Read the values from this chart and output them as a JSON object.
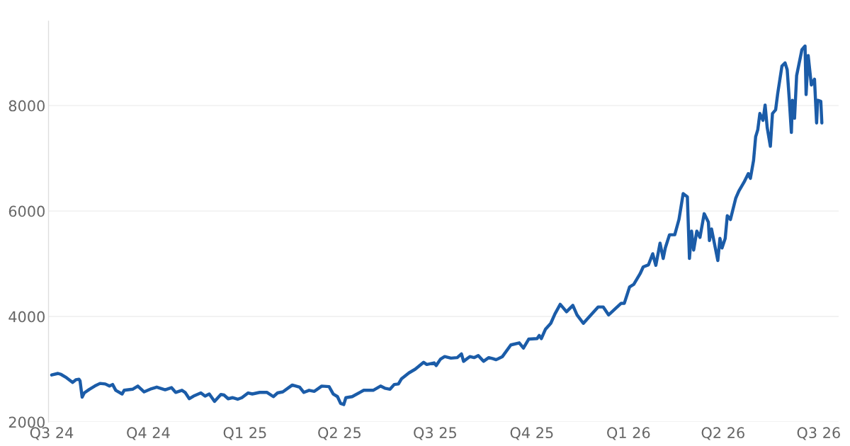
{
  "chart_data": {
    "type": "line",
    "x": [
      "2024-07-01",
      "2024-07-07",
      "2024-07-10",
      "2024-07-15",
      "2024-07-19",
      "2024-07-21",
      "2024-07-24",
      "2024-07-27",
      "2024-07-28",
      "2024-07-30",
      "2024-08-01",
      "2024-08-06",
      "2024-08-11",
      "2024-08-16",
      "2024-08-21",
      "2024-08-25",
      "2024-08-28",
      "2024-08-31",
      "2024-09-06",
      "2024-09-08",
      "2024-09-16",
      "2024-09-21",
      "2024-09-27",
      "2024-10-04",
      "2024-10-09",
      "2024-10-17",
      "2024-10-23",
      "2024-10-27",
      "2024-11-02",
      "2024-11-05",
      "2024-11-09",
      "2024-11-13",
      "2024-11-20",
      "2024-11-24",
      "2024-11-28",
      "2024-12-03",
      "2024-12-09",
      "2024-12-12",
      "2024-12-16",
      "2024-12-20",
      "2024-12-25",
      "2024-12-29",
      "2025-01-04",
      "2025-01-08",
      "2025-01-15",
      "2025-01-22",
      "2025-01-28",
      "2025-02-01",
      "2025-02-06",
      "2025-02-15",
      "2025-02-22",
      "2025-02-26",
      "2025-03-03",
      "2025-03-08",
      "2025-03-15",
      "2025-03-22",
      "2025-03-26",
      "2025-03-30",
      "2025-04-02",
      "2025-04-05",
      "2025-04-07",
      "2025-04-13",
      "2025-04-24",
      "2025-05-03",
      "2025-05-10",
      "2025-05-14",
      "2025-05-19",
      "2025-05-23",
      "2025-05-27",
      "2025-05-30",
      "2025-06-06",
      "2025-06-12",
      "2025-06-20",
      "2025-06-23",
      "2025-06-30",
      "2025-07-02",
      "2025-07-06",
      "2025-07-10",
      "2025-07-16",
      "2025-07-22",
      "2025-07-26",
      "2025-07-28",
      "2025-08-03",
      "2025-08-07",
      "2025-08-11",
      "2025-08-16",
      "2025-08-21",
      "2025-08-25",
      "2025-08-28",
      "2025-09-03",
      "2025-09-11",
      "2025-09-19",
      "2025-09-23",
      "2025-09-28",
      "2025-10-06",
      "2025-10-08",
      "2025-10-10",
      "2025-10-14",
      "2025-10-19",
      "2025-10-23",
      "2025-10-28",
      "2025-11-03",
      "2025-11-09",
      "2025-11-13",
      "2025-11-19",
      "2025-11-24",
      "2025-12-03",
      "2025-12-08",
      "2025-12-13",
      "2025-12-19",
      "2025-12-25",
      "2025-12-28",
      "2026-01-02",
      "2026-01-06",
      "2026-01-12",
      "2026-01-15",
      "2026-01-20",
      "2026-01-24",
      "2026-01-27",
      "2026-01-31",
      "2026-02-03",
      "2026-02-05",
      "2026-02-09",
      "2026-02-14",
      "2026-02-18",
      "2026-02-22",
      "2026-02-26",
      "2026-02-28",
      "2026-03-02",
      "2026-03-04",
      "2026-03-07",
      "2026-03-10",
      "2026-03-14",
      "2026-03-18",
      "2026-03-19",
      "2026-03-21",
      "2026-03-27",
      "2026-03-29",
      "2026-03-31",
      "2026-04-03",
      "2026-04-05",
      "2026-04-08",
      "2026-04-13",
      "2026-04-16",
      "2026-04-21",
      "2026-04-25",
      "2026-04-27",
      "2026-04-30",
      "2026-05-02",
      "2026-05-04",
      "2026-05-06",
      "2026-05-09",
      "2026-05-11",
      "2026-05-13",
      "2026-05-16",
      "2026-05-18",
      "2026-05-21",
      "2026-05-23",
      "2026-05-27",
      "2026-05-30",
      "2026-06-01",
      "2026-06-03",
      "2026-06-05",
      "2026-06-06",
      "2026-06-08",
      "2026-06-10",
      "2026-06-15",
      "2026-06-18",
      "2026-06-19",
      "2026-06-21",
      "2026-06-24",
      "2026-06-27",
      "2026-06-29",
      "2026-06-30",
      "2026-07-03",
      "2026-07-04"
    ],
    "series": [
      {
        "color": "#1b5ca8",
        "values": [
          2890,
          2920,
          2900,
          2840,
          2780,
          2750,
          2800,
          2810,
          2780,
          2470,
          2550,
          2620,
          2680,
          2730,
          2720,
          2680,
          2710,
          2600,
          2530,
          2600,
          2620,
          2680,
          2570,
          2630,
          2660,
          2610,
          2650,
          2560,
          2600,
          2560,
          2440,
          2490,
          2550,
          2490,
          2530,
          2390,
          2520,
          2510,
          2440,
          2460,
          2430,
          2460,
          2550,
          2530,
          2560,
          2560,
          2480,
          2550,
          2570,
          2700,
          2660,
          2560,
          2600,
          2580,
          2680,
          2670,
          2530,
          2480,
          2350,
          2330,
          2460,
          2480,
          2600,
          2600,
          2680,
          2640,
          2620,
          2710,
          2720,
          2820,
          2930,
          3000,
          3130,
          3090,
          3120,
          3070,
          3190,
          3240,
          3210,
          3220,
          3290,
          3150,
          3240,
          3220,
          3260,
          3150,
          3220,
          3200,
          3180,
          3240,
          3460,
          3500,
          3400,
          3570,
          3580,
          3640,
          3580,
          3760,
          3870,
          4050,
          4230,
          4090,
          4210,
          4030,
          3870,
          3980,
          4180,
          4180,
          4030,
          4140,
          4250,
          4250,
          4560,
          4610,
          4810,
          4940,
          4980,
          5190,
          4970,
          5390,
          5100,
          5300,
          5550,
          5550,
          5840,
          6330,
          6270,
          5100,
          5620,
          5260,
          5620,
          5500,
          5950,
          5790,
          5440,
          5660,
          5060,
          5480,
          5300,
          5480,
          5910,
          5840,
          6240,
          6380,
          6550,
          6710,
          6620,
          6960,
          7410,
          7540,
          7850,
          7720,
          8010,
          7580,
          7230,
          7850,
          7920,
          8230,
          8750,
          8810,
          8680,
          8120,
          7490,
          8100,
          7760,
          8570,
          9060,
          9130,
          8210,
          8950,
          8390,
          8500,
          7670,
          8100,
          8080,
          7670
        ]
      }
    ],
    "xlim": [
      "2024-06-28",
      "2026-07-20"
    ],
    "xticks": [
      {
        "value": "2024-07-01",
        "label": "Q3 24"
      },
      {
        "value": "2024-10-01",
        "label": "Q4 24"
      },
      {
        "value": "2025-01-01",
        "label": "Q1 25"
      },
      {
        "value": "2025-04-01",
        "label": "Q2 25"
      },
      {
        "value": "2025-07-01",
        "label": "Q3 25"
      },
      {
        "value": "2025-10-01",
        "label": "Q4 25"
      },
      {
        "value": "2026-01-01",
        "label": "Q1 26"
      },
      {
        "value": "2026-04-01",
        "label": "Q2 26"
      },
      {
        "value": "2026-07-01",
        "label": "Q3 26"
      }
    ],
    "ylim": [
      2000,
      9600
    ],
    "yticks": [
      2000,
      4000,
      6000,
      8000
    ],
    "grid": "y"
  }
}
